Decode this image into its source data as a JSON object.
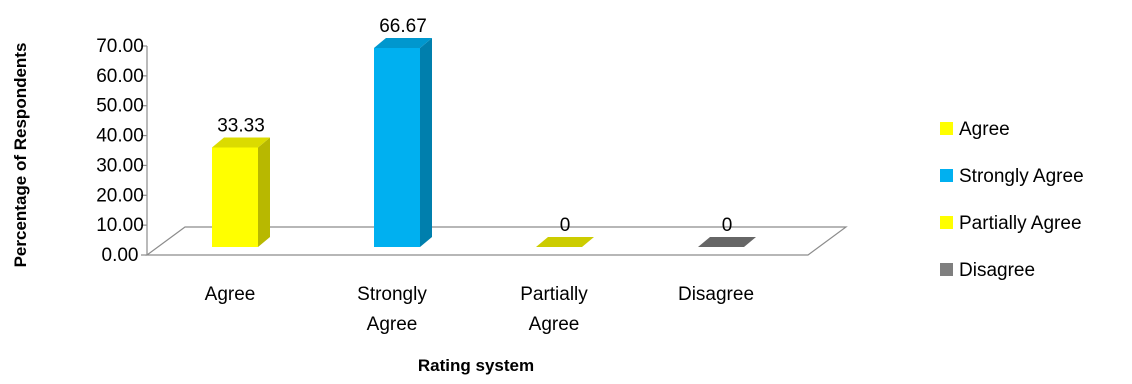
{
  "chart_data": {
    "type": "bar",
    "categories": [
      {
        "lines": [
          "Agree"
        ]
      },
      {
        "lines": [
          "Strongly",
          "Agree"
        ]
      },
      {
        "lines": [
          "Partially",
          "Agree"
        ]
      },
      {
        "lines": [
          "Disagree"
        ]
      }
    ],
    "values": [
      33.33,
      66.67,
      0,
      0
    ],
    "data_labels": [
      "33.33",
      "66.67",
      "0",
      "0"
    ],
    "bar_colors": [
      "#FFFF00",
      "#00B0F0",
      "#FFFF00",
      "#7F7F7F"
    ],
    "xlabel": "Rating system",
    "ylabel": "Percentage of Respondents",
    "ylim": [
      0,
      70
    ],
    "yticks": [
      "0.00",
      "10.00",
      "20.00",
      "30.00",
      "40.00",
      "50.00",
      "60.00",
      "70.00"
    ],
    "legend": {
      "position": "right",
      "items": [
        {
          "label": "Agree",
          "color": "#FFFF00"
        },
        {
          "label": "Strongly Agree",
          "color": "#00B0F0"
        },
        {
          "label": "Partially Agree",
          "color": "#FFFF00"
        },
        {
          "label": "Disagree",
          "color": "#7F7F7F"
        }
      ]
    },
    "grid": false,
    "style": "3d-column"
  }
}
